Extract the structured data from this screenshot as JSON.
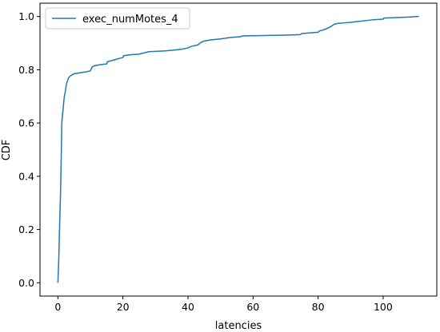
{
  "chart_data": {
    "type": "line",
    "title": "",
    "xlabel": "latencies",
    "ylabel": "CDF",
    "xlim": [
      -5.5,
      116.5
    ],
    "ylim": [
      -0.05,
      1.05
    ],
    "xticks": [
      0,
      20,
      40,
      60,
      80,
      100
    ],
    "xtick_labels": [
      "0",
      "20",
      "40",
      "60",
      "80",
      "100"
    ],
    "yticks": [
      0.0,
      0.2,
      0.4,
      0.6,
      0.8,
      1.0
    ],
    "ytick_labels": [
      "0.0",
      "0.2",
      "0.4",
      "0.6",
      "0.8",
      "1.0"
    ],
    "grid": false,
    "legend_position": "top-left",
    "colors": {
      "series": "#1f77b4",
      "axis": "#000000",
      "legend_border": "#cccccc"
    },
    "series": [
      {
        "name": "exec_numMotes_4",
        "x": [
          0,
          0.3,
          0.5,
          0.8,
          1.0,
          1.2,
          1.4,
          1.6,
          1.8,
          2.0,
          2.3,
          2.6,
          3.0,
          3.3,
          3.7,
          4.2,
          5.0,
          6.0,
          7.0,
          8.0,
          9.0,
          10.0,
          10.5,
          11.0,
          12.0,
          13.5,
          15.0,
          15.2,
          17.0,
          19.0,
          20.0,
          20.2,
          22.0,
          25.0,
          27.0,
          28.0,
          30.0,
          33.0,
          35.0,
          38.0,
          40.0,
          41.0,
          43.0,
          44.0,
          45.0,
          47.0,
          50.0,
          53.0,
          56.0,
          57.0,
          60.0,
          65.0,
          70.0,
          74.5,
          75.0,
          77.0,
          80.0,
          80.5,
          82.0,
          83.0,
          84.0,
          85.0,
          86.0,
          88.0,
          90.0,
          92.0,
          95.0,
          97.0,
          100.0,
          100.2,
          104.0,
          108.0,
          111.0
        ],
        "y": [
          0.0,
          0.1,
          0.2,
          0.33,
          0.45,
          0.6,
          0.63,
          0.65,
          0.68,
          0.7,
          0.72,
          0.745,
          0.76,
          0.77,
          0.775,
          0.78,
          0.785,
          0.787,
          0.789,
          0.791,
          0.793,
          0.796,
          0.81,
          0.814,
          0.817,
          0.82,
          0.822,
          0.83,
          0.836,
          0.843,
          0.846,
          0.853,
          0.856,
          0.859,
          0.865,
          0.868,
          0.869,
          0.871,
          0.873,
          0.877,
          0.882,
          0.888,
          0.893,
          0.903,
          0.908,
          0.912,
          0.916,
          0.921,
          0.924,
          0.927,
          0.928,
          0.929,
          0.93,
          0.932,
          0.936,
          0.938,
          0.941,
          0.946,
          0.951,
          0.957,
          0.963,
          0.971,
          0.974,
          0.976,
          0.978,
          0.981,
          0.985,
          0.988,
          0.99,
          0.994,
          0.996,
          0.998,
          1.0
        ]
      }
    ]
  }
}
